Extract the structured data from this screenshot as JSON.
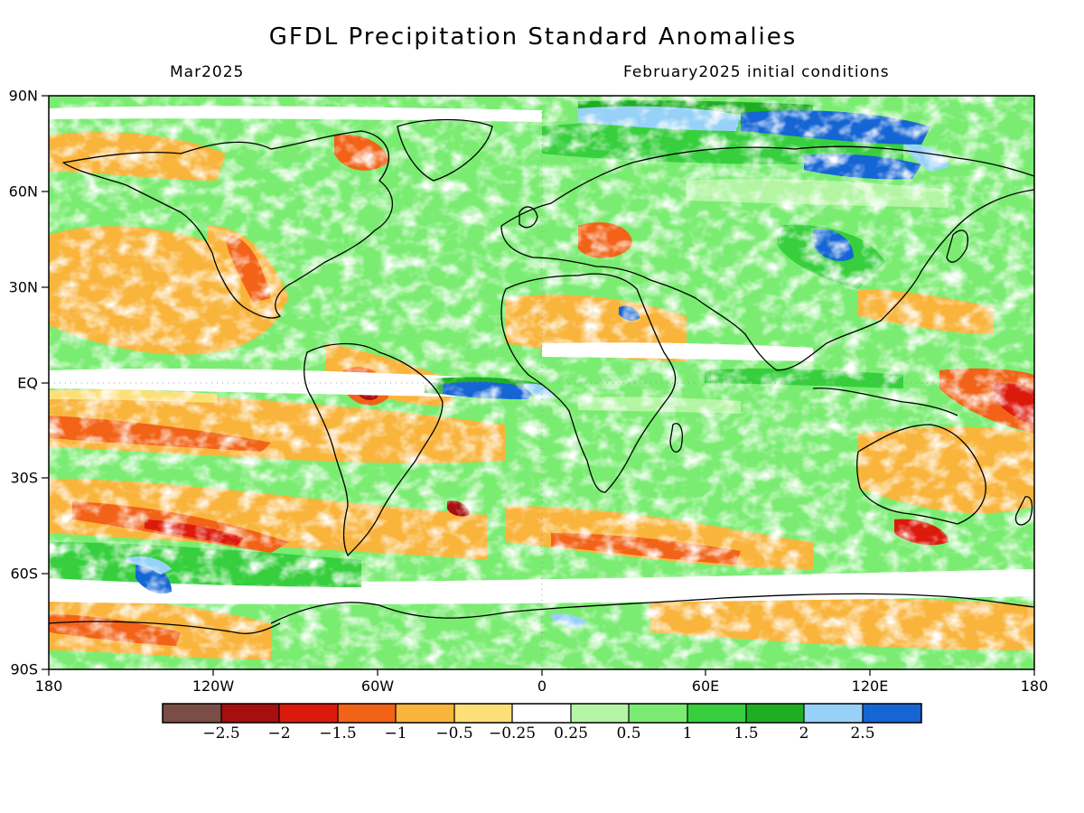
{
  "title": "GFDL Precipitation Standard Anomalies",
  "subtitle_left": "Mar2025",
  "subtitle_right": "February2025 initial conditions",
  "lat_labels": [
    "90N",
    "60N",
    "30N",
    "EQ",
    "30S",
    "60S",
    "90S"
  ],
  "lon_labels": [
    "180",
    "120W",
    "60W",
    "0",
    "60E",
    "120E",
    "180"
  ],
  "colorbar": {
    "labels": [
      "−2.5",
      "−2",
      "−1.5",
      "−1",
      "−0.5",
      "−0.25",
      "0.25",
      "0.5",
      "1",
      "1.5",
      "2",
      "2.5"
    ],
    "colors": [
      "#7a4e44",
      "#a50f0f",
      "#dc1a0c",
      "#f26217",
      "#f9b43c",
      "#fcdf78",
      "#ffffff",
      "#b4f5a4",
      "#7aec72",
      "#38cf3e",
      "#1eae22",
      "#98d1f7",
      "#1565d4"
    ]
  }
}
